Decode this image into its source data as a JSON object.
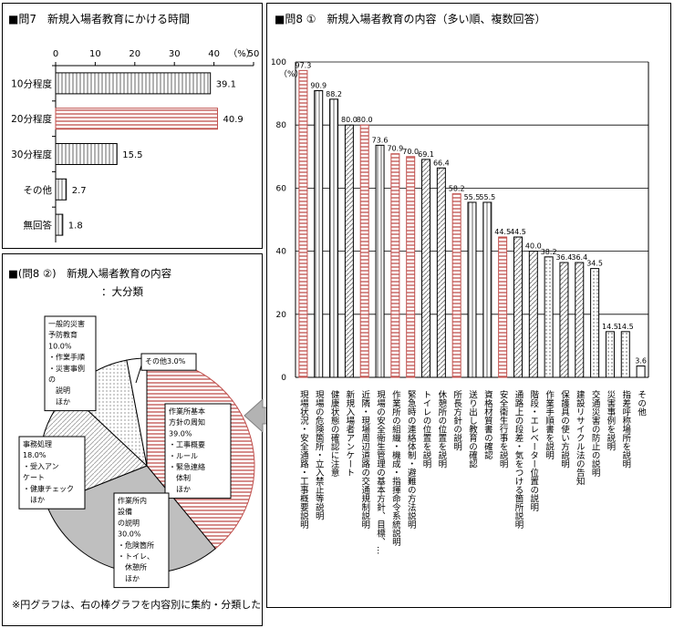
{
  "q7": {
    "title": "■問7　新規入場者教育にかける時間",
    "unit": "（%）",
    "chart_data": {
      "type": "bar",
      "orientation": "horizontal",
      "categories": [
        "10分程度",
        "20分程度",
        "30分程度",
        "その他",
        "無回答"
      ],
      "values": [
        39.1,
        40.9,
        15.5,
        2.7,
        1.8
      ],
      "value_labels": [
        "39.1",
        "40.9",
        "15.5",
        "2.7",
        "1.8"
      ],
      "xlim": [
        0,
        50
      ],
      "ticks": [
        "0",
        "10",
        "20",
        "30",
        "40",
        "50"
      ],
      "highlight_category": "20分程度",
      "colors": {
        "default": "#ffffff",
        "highlight": "#c0504d"
      }
    }
  },
  "q8_1": {
    "title": "■問8 ①　新規入場者教育の内容（多い順、複数回答）",
    "unit": "（%）",
    "chart_data": {
      "type": "bar",
      "orientation": "vertical",
      "ylim": [
        0,
        100
      ],
      "ticks": [
        "0",
        "20",
        "40",
        "60",
        "80",
        "100"
      ],
      "grid": true,
      "categories": [
        "現場状況・安全通路・工事概要説明",
        "現場の危険箇所・立入禁止等説明",
        "健康状態の確認に注意",
        "新規入場者アンケート",
        "近隣・現場周辺道路の交通規制説明",
        "現場の安全衛生管理の基本方針、目標、…",
        "作業所の組織・機成・指揮命令系統説明",
        "緊急時の連絡体制・避難の方法説明",
        "トイレの位置を説明",
        "休憩所の位置を説明",
        "所長方針の説明",
        "送り出し教育の確認",
        "資格材質書の確認",
        "安全衛生行事を説明",
        "通路上の段差・気をつける箇所説明",
        "階段・エレベーター位置の説明",
        "作業手順書を説明",
        "保護具の使い方説明",
        "建設リサイクル法の告知",
        "交通災害の防止の説明",
        "災害事例を説明",
        "指差呼称場所を説明",
        "その他"
      ],
      "values": [
        97.3,
        90.9,
        88.2,
        80.0,
        80.0,
        73.6,
        70.9,
        70.0,
        69.1,
        66.4,
        58.2,
        55.5,
        55.5,
        44.5,
        44.5,
        40.0,
        38.2,
        36.4,
        36.4,
        34.5,
        14.5,
        14.5,
        3.6
      ],
      "value_labels": [
        "97.3",
        "90.9",
        "88.2",
        "80.0",
        "80.0",
        "73.6",
        "70.9",
        "70.0",
        "69.1",
        "66.4",
        "58.2",
        "55.5",
        "55.5",
        "44.5",
        "44.5",
        "40.0",
        "38.2",
        "36.4",
        "36.4",
        "34.5",
        "14.5",
        "14.5",
        "3.6"
      ],
      "groups": [
        "A",
        "B",
        "B",
        "C",
        "A",
        "B",
        "A",
        "A",
        "C",
        "C",
        "A",
        "B",
        "B",
        "A",
        "C",
        "C",
        "D",
        "C",
        "C",
        "D",
        "D",
        "D",
        "E"
      ],
      "group_colors": {
        "A": "#c0504d",
        "B": "#808080",
        "C": "#808080",
        "D": "#000000",
        "E": "#ffffff"
      }
    }
  },
  "q8_2": {
    "title_line1": "■(問8 ②)　新規入場者教育の内容",
    "title_line2": "：大分類",
    "chart_data": {
      "type": "pie",
      "slices": [
        {
          "name": "作業所基本方針の周知",
          "value": 39.0,
          "color": "#c0504d",
          "label_lines": [
            "作業所基本",
            "方針の周知",
            "39.0%",
            "・工事概要",
            "・ルール",
            "・緊急連絡",
            "　体制",
            "　ほか"
          ]
        },
        {
          "name": "作業所内設備の説明",
          "value": 30.0,
          "color": "#bfbfbf",
          "label_lines": [
            "作業所内",
            "設備",
            "の説明",
            "30.0%",
            "・危険箇所",
            "・トイレ、",
            "　休憩所",
            "　ほか"
          ]
        },
        {
          "name": "事務処理",
          "value": 18.0,
          "color": "#f2f2f2",
          "label_lines": [
            "事務処理",
            "18.0%",
            "・受入アン",
            "ケート",
            "・健康チェック",
            "　ほか"
          ]
        },
        {
          "name": "一般的災害予防教育",
          "value": 10.0,
          "color": "#ffffff",
          "label_lines": [
            "一般的災害",
            "予防教育",
            "10.0%",
            "・作業手順",
            "・災害事例",
            "の",
            "　説明",
            "　ほか"
          ]
        },
        {
          "name": "その他",
          "value": 3.0,
          "color": "#ffffff",
          "label_lines": [
            "その他3.0%"
          ]
        }
      ]
    },
    "note": "※円グラフは、右の棒グラフを内容別に集約・分類した"
  }
}
